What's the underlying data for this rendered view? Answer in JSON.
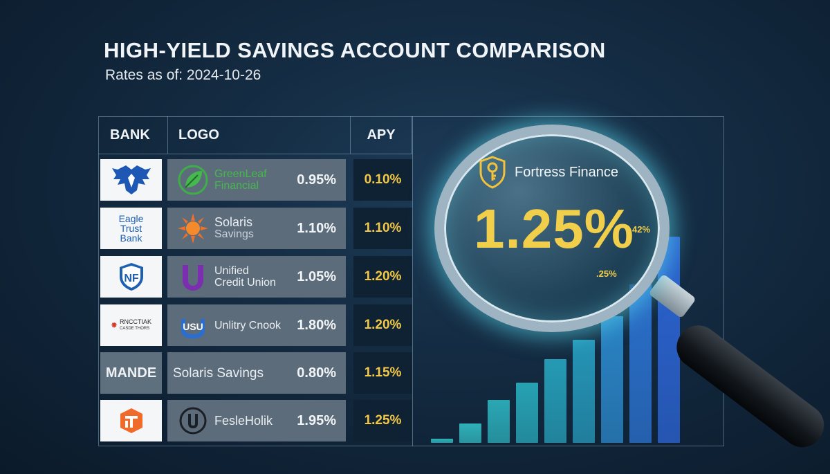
{
  "header": {
    "title": "HIGH-YIELD SAVINGS ACCOUNT COMPARISON",
    "subtitle": "Rates as of: 2024-10-26"
  },
  "table": {
    "columns": {
      "bank": "BANK",
      "logo": "LOGO",
      "apy": "APY"
    },
    "rows": [
      {
        "bank_logo": "eagle-icon",
        "name": "GreenLeaf Financial",
        "name_l1": "GreenLeaf",
        "name_l2": "Financial",
        "rate": "0.95%",
        "apy": "0.10%",
        "logo_icon": "leaf-icon"
      },
      {
        "bank_text_l1": "Eagle",
        "bank_text_l2": "Trust",
        "bank_text_l3": "Bank",
        "name_l1": "Solaris",
        "name_l2": "Savings",
        "rate": "1.10%",
        "apy": "1.10%",
        "logo_icon": "sun-icon"
      },
      {
        "bank_logo": "shield-icon",
        "name_l1": "Unified",
        "name_l2": "Credit Union",
        "rate": "1.05%",
        "apy": "1.20%",
        "logo_icon": "u-icon"
      },
      {
        "bank_text_l1": "RNCCTIAK",
        "bank_text_l2": "CASDE THORS",
        "name_l1": "Unlitry Cnook",
        "rate": "1.80%",
        "apy": "1.20%",
        "logo_icon": "usu-icon"
      },
      {
        "bank_plain": "MANDE",
        "name_l1": "Solaris Savings",
        "rate": "0.80%",
        "apy": "1.15%"
      },
      {
        "bank_logo": "fi-icon",
        "name_l1": "FesleHolik",
        "rate": "1.95%",
        "apy": "1.25%",
        "logo_icon": "u-circle-icon"
      }
    ]
  },
  "highlight": {
    "bank": "Fortress Finance",
    "rate": "1.25%",
    "bar_label_1": ".25%",
    "bar_label_2": "42%",
    "icon": "key-shield-icon"
  },
  "bars": {
    "values": [
      0.02,
      0.09,
      0.2,
      0.28,
      0.39,
      0.48,
      0.59,
      0.74,
      0.96
    ],
    "colors": [
      "#2fb0b8",
      "#2fb0b8",
      "#2aa7b4",
      "#26a2b3",
      "#259ab4",
      "#2594b6",
      "#2a83c4",
      "#2a6fca",
      "#2b62cf"
    ]
  },
  "colors": {
    "accent": "#f2cf4a",
    "glow": "#5ae0f0"
  }
}
